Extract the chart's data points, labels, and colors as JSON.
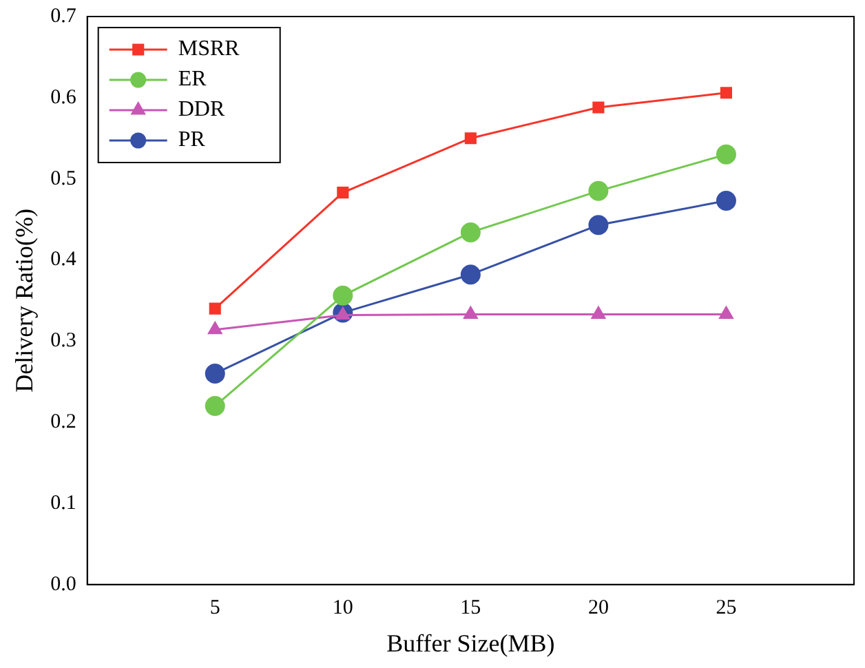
{
  "chart_data": {
    "type": "line",
    "xlabel": "Buffer Size(MB)",
    "ylabel": "Delivery Ratio(%)",
    "x": [
      5,
      10,
      15,
      20,
      25
    ],
    "xlim": [
      0,
      30
    ],
    "xticks": [
      5,
      10,
      15,
      20,
      25
    ],
    "ylim": [
      0,
      0.7
    ],
    "yticks": [
      {
        "value": 0,
        "label": "0.0"
      },
      0.1,
      0.2,
      0.3,
      0.4,
      0.5,
      0.6,
      0.7
    ],
    "grid": false,
    "legend": "top left",
    "line_style": "solid",
    "series": [
      {
        "name": "MSRR",
        "color": "#f5352a",
        "marker": "square",
        "values": [
          0.34,
          0.483,
          0.55,
          0.588,
          0.606
        ]
      },
      {
        "name": "ER",
        "color": "#72c84e",
        "marker": "circle",
        "values": [
          0.22,
          0.356,
          0.434,
          0.485,
          0.53
        ]
      },
      {
        "name": "DDR",
        "color": "#c856b4",
        "marker": "triangle",
        "values": [
          0.314,
          0.332,
          0.333,
          0.333,
          0.333
        ]
      },
      {
        "name": "PR",
        "color": "#3650a6",
        "marker": "circle",
        "values": [
          0.26,
          0.335,
          0.382,
          0.443,
          0.473
        ]
      }
    ]
  }
}
